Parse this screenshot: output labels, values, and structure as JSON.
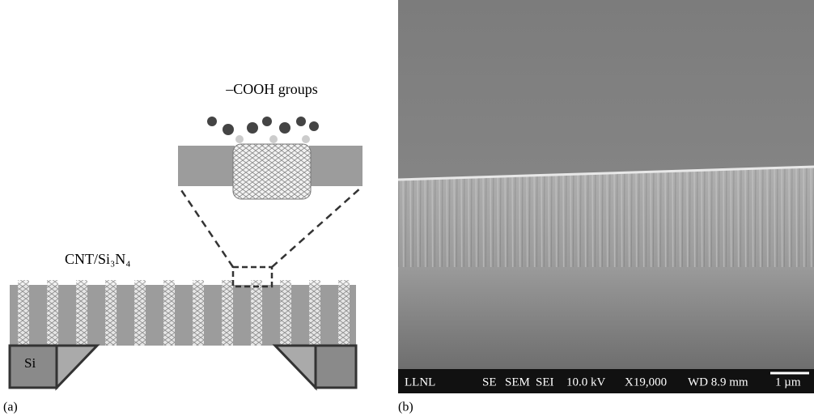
{
  "panel_a": {
    "label": "(a)",
    "inset_label": "–COOH groups",
    "membrane_label": "CNT/Si₃N₄",
    "support_label": "Si"
  },
  "panel_b": {
    "label": "(b)",
    "info_bar": [
      "LLNL",
      "SE",
      "SEM",
      "SEI",
      "10.0 kV",
      "X19,000",
      "WD 8.9 mm",
      "1 µm"
    ]
  }
}
